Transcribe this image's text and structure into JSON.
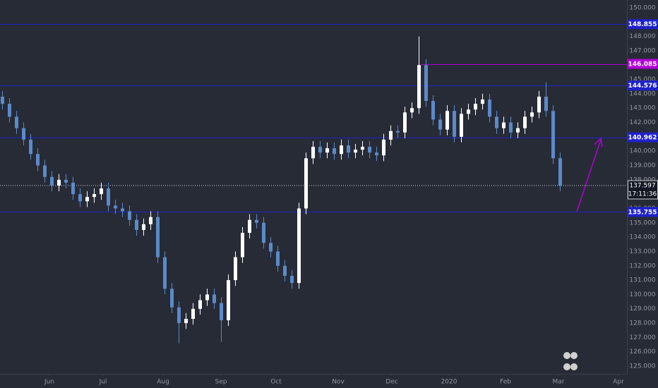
{
  "chart_data": {
    "type": "candlestick",
    "background": "#272b36",
    "up_color": "#ffffff",
    "down_color": "#5b8ac9",
    "categories": [
      null,
      null,
      null,
      null,
      null,
      null,
      null,
      null,
      null,
      null,
      null,
      null,
      null,
      null,
      null,
      null,
      null,
      null,
      null,
      null,
      null,
      null,
      null,
      null,
      null,
      null,
      null,
      null,
      null,
      null,
      null,
      null,
      null,
      null,
      null,
      null,
      null,
      null,
      null,
      null,
      null,
      null,
      null,
      null,
      null,
      null,
      null,
      null,
      null,
      null,
      null,
      null,
      null,
      null,
      null,
      null,
      null,
      null,
      null,
      null,
      null,
      null,
      null,
      null,
      null,
      null,
      null,
      null,
      null,
      null,
      null,
      null,
      null,
      null,
      null,
      null,
      null,
      null,
      null,
      null
    ],
    "open": [
      143.8,
      143.3,
      142.4,
      141.6,
      140.8,
      139.8,
      139.0,
      138.2,
      137.6,
      138.0,
      137.8,
      137.0,
      136.5,
      136.8,
      137.0,
      137.4,
      136.2,
      136.0,
      135.8,
      135.2,
      134.5,
      134.9,
      135.4,
      132.6,
      130.4,
      129.1,
      128.0,
      128.3,
      129.0,
      129.6,
      130.0,
      129.4,
      128.2,
      131.0,
      132.6,
      134.3,
      135.2,
      135.0,
      133.6,
      133.0,
      132.0,
      131.3,
      130.8,
      136.0,
      139.5,
      140.3,
      139.9,
      140.2,
      139.8,
      140.4,
      139.9,
      140.1,
      140.3,
      139.9,
      139.7,
      140.8,
      141.4,
      141.3,
      142.7,
      143.0,
      146.0,
      143.5,
      142.2,
      141.5,
      142.8,
      141.0,
      142.6,
      142.9,
      143.3,
      143.6,
      142.4,
      141.6,
      142.0,
      141.3,
      141.6,
      142.4,
      142.7,
      143.8,
      142.8,
      139.5
    ],
    "high": [
      144.2,
      143.7,
      142.8,
      142.0,
      141.2,
      140.2,
      139.4,
      138.6,
      138.4,
      138.4,
      138.2,
      137.4,
      137.2,
      137.4,
      137.8,
      137.8,
      136.6,
      136.4,
      136.2,
      135.6,
      135.3,
      135.8,
      135.8,
      133.0,
      130.8,
      129.5,
      128.7,
      129.4,
      130.0,
      130.4,
      130.4,
      129.8,
      131.4,
      133.0,
      134.7,
      135.6,
      135.6,
      135.4,
      134.0,
      133.4,
      132.4,
      131.7,
      136.4,
      139.9,
      140.7,
      140.7,
      140.6,
      140.6,
      140.8,
      140.8,
      140.5,
      140.7,
      140.7,
      140.3,
      141.2,
      141.8,
      141.8,
      143.1,
      143.4,
      148.0,
      146.4,
      143.9,
      142.6,
      143.2,
      143.2,
      143.0,
      143.3,
      143.7,
      144.0,
      144.0,
      142.8,
      142.4,
      142.4,
      142.0,
      142.8,
      143.1,
      144.2,
      144.8,
      143.2,
      139.9
    ],
    "low": [
      142.9,
      142.0,
      141.2,
      140.4,
      139.4,
      138.6,
      137.8,
      137.2,
      137.2,
      137.4,
      136.6,
      136.1,
      136.1,
      136.4,
      136.6,
      135.8,
      135.6,
      135.4,
      134.8,
      134.1,
      134.1,
      134.5,
      132.2,
      130.0,
      128.7,
      126.6,
      127.6,
      127.9,
      128.6,
      129.2,
      129.0,
      126.7,
      127.8,
      130.6,
      132.2,
      133.9,
      134.6,
      133.2,
      132.6,
      131.6,
      130.9,
      130.4,
      130.4,
      135.6,
      139.1,
      139.5,
      139.5,
      139.4,
      139.4,
      139.5,
      139.5,
      139.7,
      139.5,
      139.3,
      139.3,
      140.4,
      140.9,
      140.9,
      142.3,
      142.6,
      143.1,
      141.8,
      141.1,
      141.1,
      140.6,
      140.6,
      142.2,
      142.5,
      142.9,
      142.0,
      141.2,
      141.2,
      140.9,
      140.9,
      141.2,
      142.0,
      142.3,
      142.4,
      139.1,
      137.2
    ],
    "close": [
      143.3,
      142.4,
      141.6,
      140.8,
      139.8,
      139.0,
      138.2,
      137.6,
      138.0,
      137.8,
      137.0,
      136.5,
      136.8,
      137.0,
      137.4,
      136.2,
      136.0,
      135.8,
      135.2,
      134.5,
      134.9,
      135.4,
      132.6,
      130.4,
      129.1,
      128.0,
      128.3,
      129.0,
      129.6,
      130.0,
      129.4,
      128.2,
      131.0,
      132.6,
      134.3,
      135.2,
      135.0,
      133.6,
      133.0,
      132.0,
      131.3,
      130.8,
      136.0,
      139.5,
      140.3,
      139.9,
      140.2,
      139.8,
      140.4,
      139.9,
      140.1,
      140.3,
      139.9,
      139.7,
      140.8,
      141.4,
      141.3,
      142.7,
      143.0,
      146.0,
      143.5,
      142.2,
      141.5,
      142.8,
      141.0,
      142.6,
      142.9,
      143.3,
      143.6,
      142.4,
      141.6,
      142.0,
      141.3,
      141.6,
      142.4,
      142.7,
      143.8,
      142.8,
      139.5,
      137.6
    ],
    "xlim": [
      -0.3,
      88.5
    ],
    "xticks": [
      {
        "value": 6.7,
        "label": "Jun"
      },
      {
        "value": 14.3,
        "label": "Jul"
      },
      {
        "value": 22.8,
        "label": "Aug"
      },
      {
        "value": 31,
        "label": "Sep"
      },
      {
        "value": 38.8,
        "label": "Oct"
      },
      {
        "value": 47.6,
        "label": "Nov"
      },
      {
        "value": 55.2,
        "label": "Dec"
      },
      {
        "value": 63.3,
        "label": "2020"
      },
      {
        "value": 71.3,
        "label": "Feb"
      },
      {
        "value": 78.8,
        "label": "Mar"
      },
      {
        "value": 87.3,
        "label": "Apr"
      }
    ],
    "ylim": [
      124.46,
      150.54
    ],
    "yticks": [
      {
        "value": 125,
        "label": "125.000"
      },
      {
        "value": 126,
        "label": "126.000"
      },
      {
        "value": 127,
        "label": "127.000"
      },
      {
        "value": 128,
        "label": "128.000"
      },
      {
        "value": 129,
        "label": "129.000"
      },
      {
        "value": 130,
        "label": "130.000"
      },
      {
        "value": 131,
        "label": "131.000"
      },
      {
        "value": 132,
        "label": "132.000"
      },
      {
        "value": 133,
        "label": "133.000"
      },
      {
        "value": 134,
        "label": "134.000"
      },
      {
        "value": 135,
        "label": "135.000"
      },
      {
        "value": 136,
        "label": "136.000"
      },
      {
        "value": 137,
        "label": "137.000"
      },
      {
        "value": 138,
        "label": "138.000"
      },
      {
        "value": 139,
        "label": "139.000"
      },
      {
        "value": 140,
        "label": "140.000"
      },
      {
        "value": 141,
        "label": "141.000"
      },
      {
        "value": 142,
        "label": "142.000"
      },
      {
        "value": 143,
        "label": "143.000"
      },
      {
        "value": 144,
        "label": "144.000"
      },
      {
        "value": 145,
        "label": "145.000"
      },
      {
        "value": 146,
        "label": "146.000"
      },
      {
        "value": 147,
        "label": "147.000"
      },
      {
        "value": 148,
        "label": "148.000"
      },
      {
        "value": 149,
        "label": "149.000"
      },
      {
        "value": 150,
        "label": "150.000"
      }
    ],
    "levels": [
      {
        "value": 148.855,
        "color": "#1f22c9"
      },
      {
        "value": 146.085,
        "color": "#b100d8",
        "x": 59.3
      },
      {
        "value": 144.576,
        "color": "#1f22c9"
      },
      {
        "value": 140.962,
        "color": "#1f22c9"
      },
      {
        "value": 135.755,
        "color": "#1f22c9"
      }
    ],
    "last_price": 137.597,
    "countdown": "17:11:36"
  }
}
